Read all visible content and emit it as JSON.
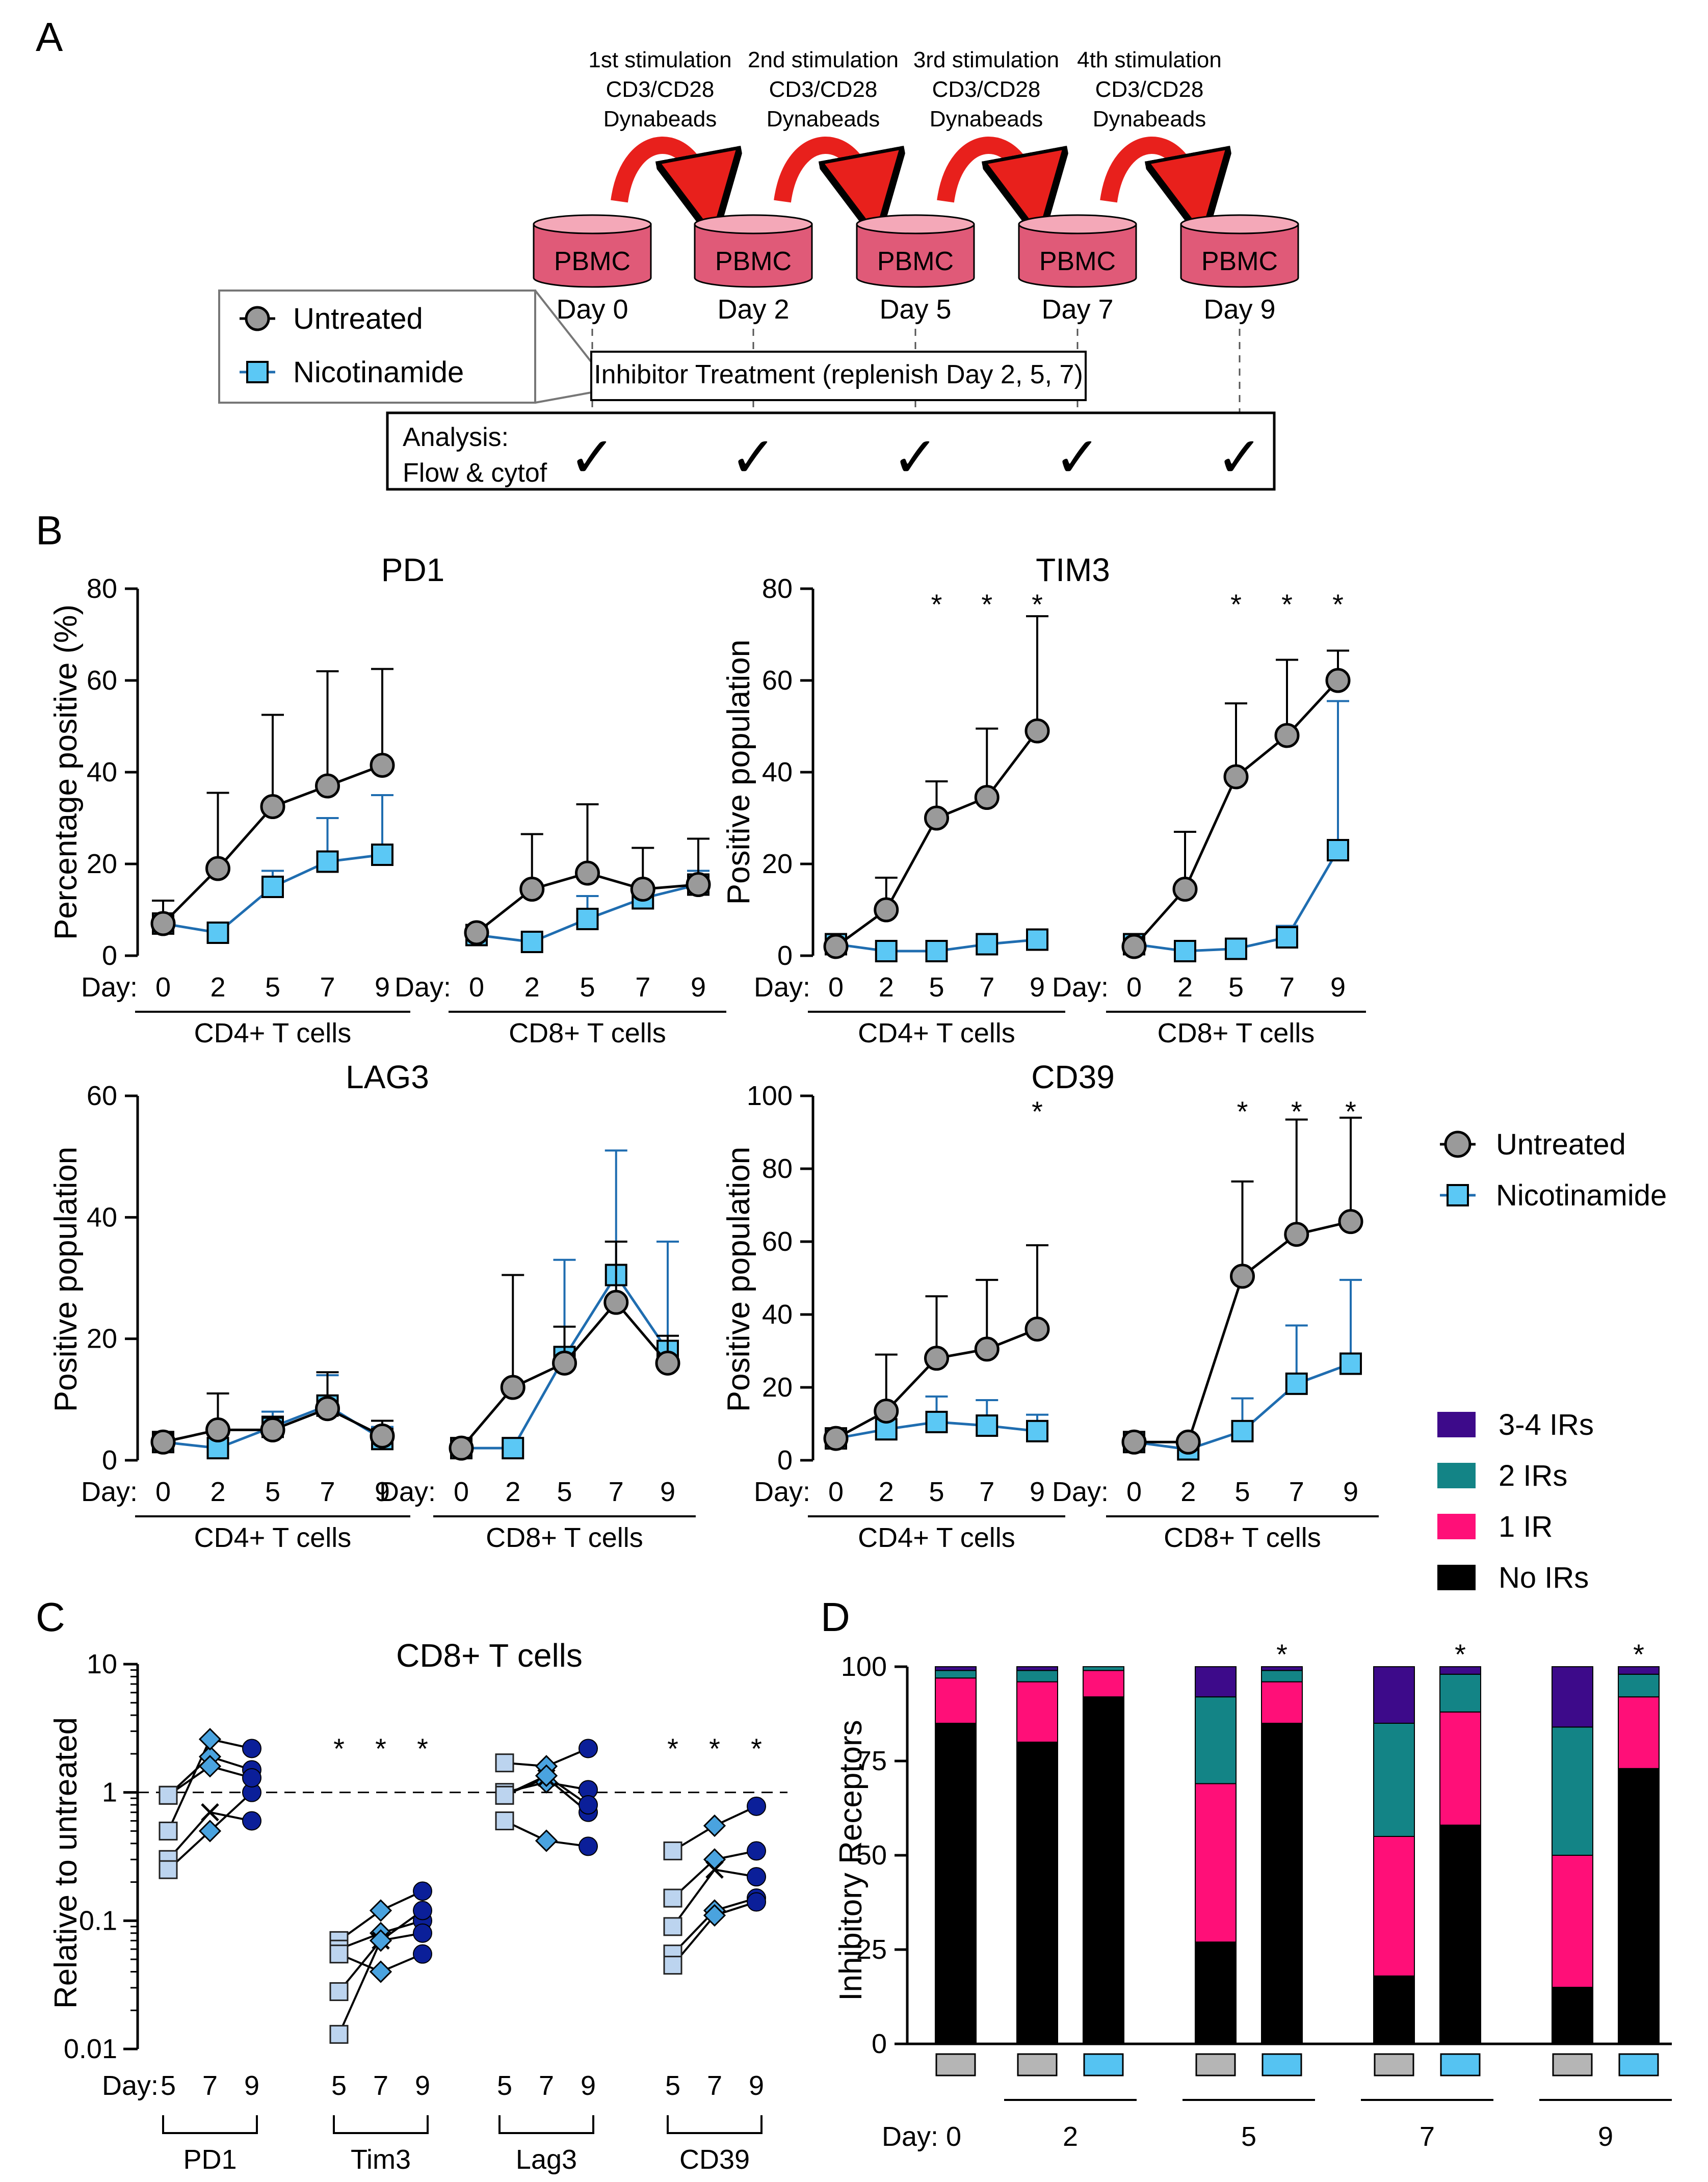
{
  "panel_labels": {
    "a": "A",
    "b": "B",
    "c": "C",
    "d": "D"
  },
  "schematic": {
    "stimulations": [
      {
        "line1": "1st stimulation",
        "line2": "CD3/CD28",
        "line3": "Dynabeads"
      },
      {
        "line1": "2nd stimulation",
        "line2": "CD3/CD28",
        "line3": "Dynabeads"
      },
      {
        "line1": "3rd stimulation",
        "line2": "CD3/CD28",
        "line3": "Dynabeads"
      },
      {
        "line1": "4th stimulation",
        "line2": "CD3/CD28",
        "line3": "Dynabeads"
      }
    ],
    "cylinder_label": "PBMC",
    "days": [
      "Day 0",
      "Day 2",
      "Day 5",
      "Day 7",
      "Day 9"
    ],
    "legend": {
      "untreated": "Untreated",
      "nicotinamide": "Nicotinamide"
    },
    "inhibitor_box": "Inhibitor Treatment (replenish Day 2, 5, 7)",
    "analysis_line1": "Analysis:",
    "analysis_line2": "Flow & cytof",
    "check": "✓",
    "colors": {
      "cylinder_top": "#f4a8b8",
      "cylinder_body": "#e05a78",
      "arrow": "#e8201c"
    }
  },
  "panelB_common": {
    "day_label": "Day:",
    "group_cd4": "CD4+ T cells",
    "group_cd8": "CD8+ T cells",
    "legend_untreated": "Untreated",
    "legend_nicotinamide": "Nicotinamide"
  },
  "legend_ir": {
    "items": [
      {
        "label": "3-4 IRs",
        "color": "#3d0a8a"
      },
      {
        "label": "2 IRs",
        "color": "#138486"
      },
      {
        "label": "1 IR",
        "color": "#ff0f78"
      },
      {
        "label": "No IRs",
        "color": "#000000"
      }
    ]
  },
  "chart_data": [
    {
      "type": "line",
      "title": "PD1",
      "ylabel": "Percentage positive (%)",
      "ylim": [
        0,
        80
      ],
      "yticks": [
        0,
        20,
        40,
        60,
        80
      ],
      "x": [
        0,
        2,
        5,
        7,
        9
      ],
      "groups": [
        "CD4+ T cells",
        "CD8+ T cells"
      ],
      "series": [
        {
          "name": "Untreated",
          "color": "#9a9a9a",
          "values_cd4": [
            7,
            19,
            32.5,
            37,
            41.5
          ],
          "err_cd4": [
            12,
            35.5,
            52.5,
            62,
            62.5
          ],
          "values_cd8": [
            5,
            14.5,
            18,
            14.5,
            15.5
          ],
          "err_cd8": [
            5,
            26.5,
            33,
            23.5,
            25.5
          ]
        },
        {
          "name": "Nicotinamide",
          "color": "#5bc8f5",
          "values_cd4": [
            7,
            5,
            15,
            20.5,
            22
          ],
          "err_cd4": [
            7,
            5,
            18.5,
            30,
            35
          ],
          "values_cd8": [
            4.5,
            3,
            8,
            12.5,
            15.5
          ],
          "err_cd8": [
            4.5,
            3,
            13,
            15,
            18.5
          ]
        }
      ],
      "significant_cd4": [],
      "significant_cd8": []
    },
    {
      "type": "line",
      "title": "TIM3",
      "ylabel": "Positive population",
      "ylim": [
        0,
        80
      ],
      "yticks": [
        0,
        20,
        40,
        60,
        80
      ],
      "x": [
        0,
        2,
        5,
        7,
        9
      ],
      "groups": [
        "CD4+ T cells",
        "CD8+ T cells"
      ],
      "series": [
        {
          "name": "Untreated",
          "color": "#9a9a9a",
          "values_cd4": [
            2,
            10,
            30,
            34.5,
            49
          ],
          "err_cd4": [
            2,
            17,
            38,
            49.5,
            74
          ],
          "values_cd8": [
            2,
            14.5,
            39,
            48,
            60
          ],
          "err_cd8": [
            2,
            27,
            55,
            64.5,
            66.5
          ]
        },
        {
          "name": "Nicotinamide",
          "color": "#5bc8f5",
          "values_cd4": [
            2.5,
            1,
            1,
            2.5,
            3.5
          ],
          "err_cd4": [
            2.5,
            1,
            1,
            3.5,
            4
          ],
          "values_cd8": [
            2.5,
            1,
            1.5,
            4,
            23
          ],
          "err_cd8": [
            3,
            1,
            2,
            6.5,
            55.5
          ]
        }
      ],
      "significant_cd4": [
        "*",
        "*",
        "*"
      ],
      "significant_cd8": [
        "*",
        "*",
        "*"
      ]
    },
    {
      "type": "line",
      "title": "LAG3",
      "ylabel": "Positive population",
      "ylim": [
        0,
        60
      ],
      "yticks": [
        0,
        20,
        40,
        60
      ],
      "x": [
        0,
        2,
        5,
        7,
        9
      ],
      "groups": [
        "CD4+ T cells",
        "CD8+ T cells"
      ],
      "series": [
        {
          "name": "Untreated",
          "color": "#9a9a9a",
          "values_cd4": [
            3,
            5,
            5,
            8.5,
            4
          ],
          "err_cd4": [
            4.5,
            11,
            7,
            14.5,
            6.5
          ],
          "values_cd8": [
            2,
            12,
            16,
            26,
            16
          ],
          "err_cd8": [
            2,
            30.5,
            22,
            36,
            20.5
          ]
        },
        {
          "name": "Nicotinamide",
          "color": "#5bc8f5",
          "values_cd4": [
            3,
            2,
            5.5,
            9,
            3.5
          ],
          "err_cd4": [
            4,
            2,
            8,
            14,
            5.5
          ],
          "values_cd8": [
            2,
            2,
            17,
            30.5,
            18
          ],
          "err_cd8": [
            2,
            2,
            33,
            51,
            36
          ]
        }
      ],
      "significant_cd4": [],
      "significant_cd8": []
    },
    {
      "type": "line",
      "title": "CD39",
      "ylabel": "Positive population",
      "ylim": [
        0,
        100
      ],
      "yticks": [
        0,
        20,
        40,
        60,
        80,
        100
      ],
      "x": [
        0,
        2,
        5,
        7,
        9
      ],
      "groups": [
        "CD4+ T cells",
        "CD8+ T cells"
      ],
      "series": [
        {
          "name": "Untreated",
          "color": "#9a9a9a",
          "values_cd4": [
            6,
            13.5,
            28,
            30.5,
            36
          ],
          "err_cd4": [
            8,
            29,
            45,
            49.5,
            59
          ],
          "values_cd8": [
            5,
            5,
            50.5,
            62,
            65.5
          ],
          "err_cd8": [
            6,
            6,
            76.5,
            93.5,
            94
          ]
        },
        {
          "name": "Nicotinamide",
          "color": "#5bc8f5",
          "values_cd4": [
            6,
            8.5,
            10.5,
            9.5,
            8
          ],
          "err_cd4": [
            7,
            13,
            17.5,
            16.5,
            12.5
          ],
          "values_cd8": [
            5,
            3,
            8,
            21,
            26.5
          ],
          "err_cd8": [
            5,
            3,
            17,
            37,
            49.5
          ]
        }
      ],
      "significant_cd4": [
        "*"
      ],
      "significant_cd8": [
        "*",
        "*",
        "*"
      ]
    },
    {
      "type": "scatter",
      "title": "CD8+ T cells",
      "ylabel": "Relative to untreated",
      "yscale": "log",
      "ylim": [
        0.01,
        10
      ],
      "yticks": [
        "0.01",
        "0.1",
        "1",
        "10"
      ],
      "day_label": "Day:",
      "reference_line": 1,
      "markers": [
        "square",
        "diamond",
        "x",
        "circle"
      ],
      "colors": {
        "day5": "#bcd4ef",
        "day7": "#4aa3df",
        "day9": "#0b1f99"
      },
      "groups": [
        {
          "name": "PD1",
          "days": [
            5,
            7,
            9
          ],
          "significant": [],
          "donors": [
            [
              0.95,
              1.9,
              1.5
            ],
            [
              0.5,
              2.6,
              2.2
            ],
            [
              0.3,
              0.7,
              0.6
            ],
            [
              0.25,
              0.5,
              1.0
            ],
            [
              0.95,
              1.6,
              1.3
            ]
          ]
        },
        {
          "name": "Tim3",
          "days": [
            5,
            7,
            9
          ],
          "significant": [
            "*",
            "*",
            "*"
          ],
          "donors": [
            [
              0.07,
              0.12,
              0.17
            ],
            [
              0.06,
              0.08,
              0.1
            ],
            [
              0.028,
              0.07,
              0.12
            ],
            [
              0.013,
              0.07,
              0.08
            ],
            [
              0.055,
              0.04,
              0.055
            ]
          ]
        },
        {
          "name": "Lag3",
          "days": [
            5,
            7,
            9
          ],
          "significant": [],
          "donors": [
            [
              1.7,
              1.6,
              2.2
            ],
            [
              1.0,
              1.2,
              1.05
            ],
            [
              0.95,
              1.3,
              0.7
            ],
            [
              0.6,
              0.42,
              0.38
            ],
            [
              0.95,
              1.35,
              0.8
            ]
          ]
        },
        {
          "name": "CD39",
          "days": [
            5,
            7,
            9
          ],
          "significant": [
            "*",
            "*",
            "*"
          ],
          "donors": [
            [
              0.35,
              0.55,
              0.78
            ],
            [
              0.15,
              0.3,
              0.35
            ],
            [
              0.09,
              0.25,
              0.22
            ],
            [
              0.055,
              0.12,
              0.15
            ],
            [
              0.045,
              0.11,
              0.14
            ]
          ]
        }
      ]
    },
    {
      "type": "bar",
      "stacked": true,
      "ylabel": "Inhibitory Receptors",
      "ylim": [
        0,
        100
      ],
      "yticks": [
        0,
        25,
        50,
        75,
        100
      ],
      "day_label": "Day: 0",
      "day_groups": [
        "2",
        "5",
        "7",
        "9"
      ],
      "treatment_colors": {
        "Untreated": "#b5b5b5",
        "Nicotinamide": "#55c3f2"
      },
      "categories": [
        "D0-U",
        "D2-U",
        "D2-N",
        "D5-U",
        "D5-N",
        "D7-U",
        "D7-N",
        "D9-U",
        "D9-N"
      ],
      "treatments": [
        "Untreated",
        "Untreated",
        "Nicotinamide",
        "Untreated",
        "Nicotinamide",
        "Untreated",
        "Nicotinamide",
        "Untreated",
        "Nicotinamide"
      ],
      "series": [
        {
          "name": "No IRs",
          "color": "#000000",
          "values": [
            85,
            80,
            92,
            27,
            85,
            18,
            58,
            15,
            73
          ]
        },
        {
          "name": "1 IR",
          "color": "#ff0f78",
          "values": [
            12,
            16,
            7,
            42,
            11,
            37,
            30,
            35,
            19
          ]
        },
        {
          "name": "2 IRs",
          "color": "#138486",
          "values": [
            2,
            3,
            1,
            23,
            3,
            30,
            10,
            34,
            6
          ]
        },
        {
          "name": "3-4 IRs",
          "color": "#3d0a8a",
          "values": [
            1,
            1,
            0,
            8,
            1,
            15,
            2,
            16,
            2
          ]
        }
      ],
      "significant": [
        "",
        "",
        "",
        "",
        "*",
        "",
        "*",
        "",
        "*"
      ]
    }
  ]
}
